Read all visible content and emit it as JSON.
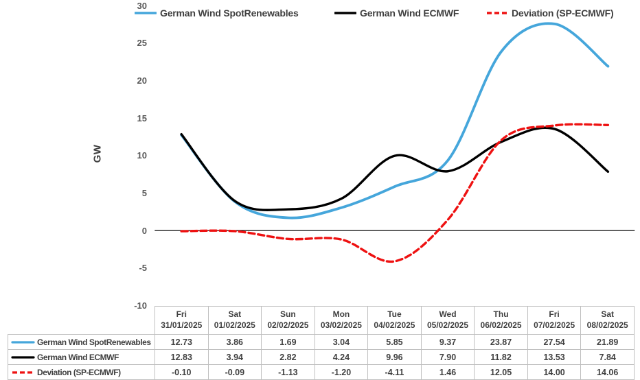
{
  "chart_data": {
    "type": "line",
    "smooth": true,
    "title": "",
    "xlabel": "",
    "ylabel": "GW",
    "ylim": [
      -10,
      30
    ],
    "yticks": [
      30,
      25,
      20,
      15,
      10,
      5,
      0,
      -5,
      -10
    ],
    "grid": false,
    "legend_position": "top",
    "zero_axis": true,
    "categories": [
      {
        "day": "Fri",
        "date": "31/01/2025"
      },
      {
        "day": "Sat",
        "date": "01/02/2025"
      },
      {
        "day": "Sun",
        "date": "02/02/2025"
      },
      {
        "day": "Mon",
        "date": "03/02/2025"
      },
      {
        "day": "Tue",
        "date": "04/02/2025"
      },
      {
        "day": "Wed",
        "date": "05/02/2025"
      },
      {
        "day": "Thu",
        "date": "06/02/2025"
      },
      {
        "day": "Fri",
        "date": "07/02/2025"
      },
      {
        "day": "Sat",
        "date": "08/02/2025"
      }
    ],
    "series": [
      {
        "name": "German Wind SpotRenewables",
        "color": "#45A6DB",
        "dash": false,
        "values": [
          "12.73",
          "3.86",
          "1.69",
          "3.04",
          "5.85",
          "9.37",
          "23.87",
          "27.54",
          "21.89"
        ]
      },
      {
        "name": "German Wind ECMWF",
        "color": "#000000",
        "dash": false,
        "values": [
          "12.83",
          "3.94",
          "2.82",
          "4.24",
          "9.96",
          "7.90",
          "11.82",
          "13.53",
          "7.84"
        ]
      },
      {
        "name": "Deviation (SP-ECMWF)",
        "color": "#EE1111",
        "dash": true,
        "values": [
          "-0.10",
          "-0.09",
          "-1.13",
          "-1.20",
          "-4.11",
          "1.46",
          "12.05",
          "14.00",
          "14.06"
        ]
      }
    ],
    "colors": {
      "axis_line": "#000000",
      "tick_text": "#595959",
      "legend_text": "#3f3f3f",
      "table_text": "#404040",
      "table_border": "#bfbfbf"
    }
  }
}
